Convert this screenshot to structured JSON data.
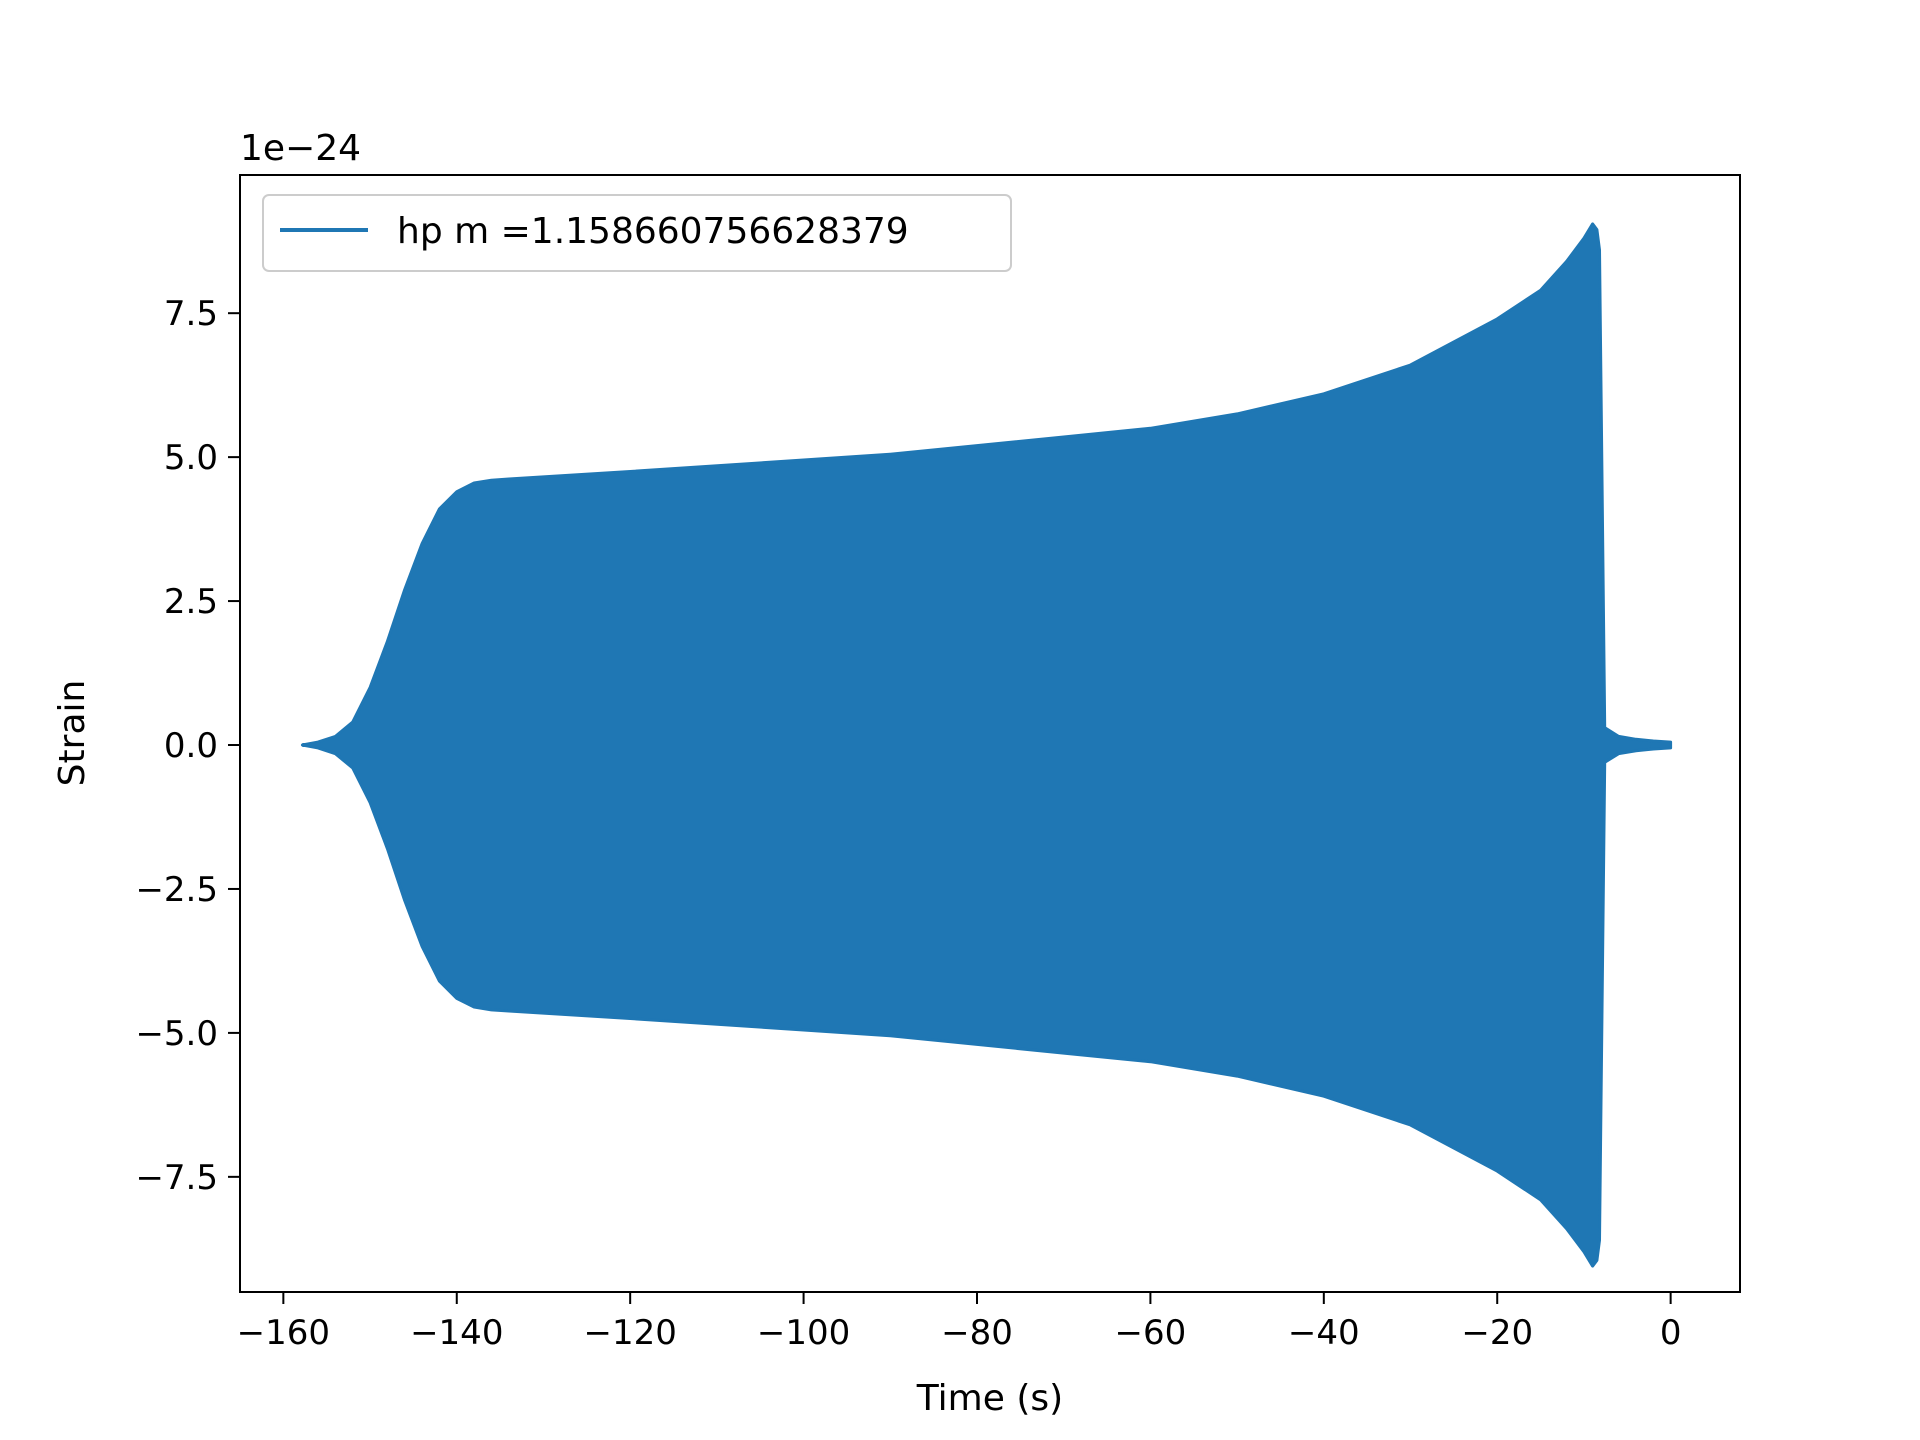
{
  "chart_data": {
    "type": "line",
    "title": "",
    "xlabel": "Time (s)",
    "ylabel": "Strain",
    "y_offset_label": "1e−24",
    "y_scale_factor": 1e-24,
    "xlim": [
      -165,
      8
    ],
    "ylim": [
      -9.5,
      9.9
    ],
    "x_ticks": [
      -160,
      -140,
      -120,
      -100,
      -80,
      -60,
      -40,
      -20,
      0
    ],
    "x_tick_labels": [
      "−160",
      "−140",
      "−120",
      "−100",
      "−80",
      "−60",
      "−40",
      "−20",
      "0"
    ],
    "y_ticks": [
      -7.5,
      -5.0,
      -2.5,
      0.0,
      2.5,
      5.0,
      7.5
    ],
    "y_tick_labels": [
      "−7.5",
      "−5.0",
      "−2.5",
      "0.0",
      "2.5",
      "5.0",
      "7.5"
    ],
    "grid": false,
    "legend_position": "top-left",
    "series": [
      {
        "name": "hp m =1.158660756628379",
        "color": "#1f77b4",
        "upper_envelope": {
          "x": [
            -157.8,
            -156,
            -154,
            -152,
            -150,
            -148,
            -146,
            -144,
            -142,
            -140,
            -138,
            -136,
            -134,
            -120,
            -100,
            -90,
            -80,
            -70,
            -60,
            -50,
            -40,
            -30,
            -20,
            -15,
            -12,
            -10,
            -9,
            -8.5,
            -8.2
          ],
          "y": [
            0.0,
            0.05,
            0.15,
            0.4,
            1.0,
            1.8,
            2.7,
            3.5,
            4.1,
            4.4,
            4.55,
            4.6,
            4.62,
            4.75,
            4.95,
            5.05,
            5.2,
            5.35,
            5.5,
            5.75,
            6.1,
            6.6,
            7.4,
            7.9,
            8.4,
            8.8,
            9.05,
            8.95,
            8.6
          ]
        },
        "lower_envelope": {
          "x": [
            -157.8,
            -156,
            -154,
            -152,
            -150,
            -148,
            -146,
            -144,
            -142,
            -140,
            -138,
            -136,
            -134,
            -120,
            -100,
            -90,
            -80,
            -70,
            -60,
            -50,
            -40,
            -30,
            -20,
            -15,
            -12,
            -10,
            -9,
            -8.5,
            -8.2
          ],
          "y": [
            0.0,
            -0.05,
            -0.15,
            -0.4,
            -1.0,
            -1.8,
            -2.7,
            -3.5,
            -4.1,
            -4.4,
            -4.55,
            -4.6,
            -4.62,
            -4.75,
            -4.95,
            -5.05,
            -5.2,
            -5.35,
            -5.5,
            -5.75,
            -6.1,
            -6.6,
            -7.4,
            -7.9,
            -8.4,
            -8.8,
            -9.05,
            -8.95,
            -8.6
          ]
        },
        "ringdown": {
          "x": [
            -8.2,
            -7.6,
            -6,
            -4,
            -2,
            0
          ],
          "y_amplitude": [
            8.6,
            0.3,
            0.15,
            0.1,
            0.07,
            0.05
          ]
        }
      }
    ]
  }
}
